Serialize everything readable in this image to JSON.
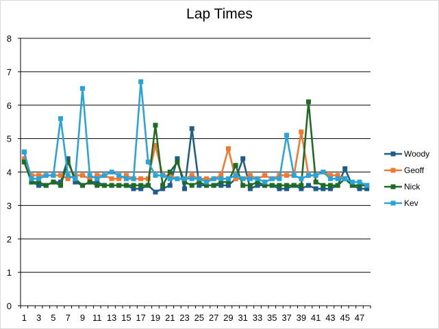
{
  "chart_data": {
    "type": "line",
    "title": "Lap Times",
    "xlabel": "",
    "ylabel": "",
    "x": [
      1,
      2,
      3,
      4,
      5,
      6,
      7,
      8,
      9,
      10,
      11,
      12,
      13,
      14,
      15,
      16,
      17,
      18,
      19,
      20,
      21,
      22,
      23,
      24,
      25,
      26,
      27,
      28,
      29,
      30,
      31,
      32,
      33,
      34,
      35,
      36,
      37,
      38,
      39,
      40,
      41,
      42,
      43,
      44,
      45,
      46,
      47,
      48
    ],
    "x_tick_labels": [
      "1",
      "3",
      "5",
      "7",
      "9",
      "11",
      "13",
      "15",
      "17",
      "19",
      "21",
      "23",
      "25",
      "27",
      "29",
      "31",
      "33",
      "35",
      "37",
      "39",
      "41",
      "43",
      "45",
      "47"
    ],
    "ylim": [
      0,
      8
    ],
    "y_ticks": [
      "0",
      "1",
      "2",
      "3",
      "4",
      "5",
      "6",
      "7",
      "8"
    ],
    "grid": true,
    "legend_position": "right",
    "series": [
      {
        "name": "Woody",
        "color": "#1f5c87",
        "values": [
          4.6,
          3.7,
          3.6,
          3.6,
          3.7,
          3.7,
          4.4,
          3.7,
          3.6,
          3.7,
          3.7,
          3.6,
          3.6,
          3.6,
          3.6,
          3.5,
          3.5,
          3.6,
          3.4,
          3.5,
          3.6,
          4.4,
          3.5,
          5.3,
          3.6,
          3.6,
          3.6,
          3.6,
          3.6,
          3.8,
          4.4,
          3.5,
          3.6,
          3.6,
          3.6,
          3.5,
          3.5,
          3.6,
          3.5,
          3.6,
          3.5,
          3.5,
          3.5,
          3.6,
          4.1,
          3.6,
          3.5,
          3.5
        ]
      },
      {
        "name": "Geoff",
        "color": "#f07830",
        "values": [
          4.4,
          3.9,
          3.9,
          3.9,
          3.9,
          3.9,
          3.8,
          3.9,
          3.9,
          3.8,
          3.9,
          3.9,
          3.8,
          3.8,
          3.9,
          3.8,
          3.8,
          3.8,
          4.8,
          3.9,
          3.9,
          3.8,
          3.8,
          3.9,
          3.8,
          3.8,
          3.8,
          3.9,
          4.7,
          3.8,
          3.8,
          3.9,
          3.8,
          3.9,
          3.8,
          3.9,
          3.9,
          3.9,
          5.2,
          3.9,
          3.9,
          4.0,
          3.9,
          3.9,
          3.8,
          3.6,
          3.6,
          3.6
        ]
      },
      {
        "name": "Nick",
        "color": "#1e6b24",
        "values": [
          4.3,
          3.7,
          3.7,
          3.6,
          3.7,
          3.6,
          4.3,
          3.8,
          3.6,
          3.7,
          3.6,
          3.6,
          3.6,
          3.6,
          3.6,
          3.6,
          3.6,
          3.6,
          5.4,
          3.6,
          4.0,
          4.3,
          3.7,
          3.6,
          3.7,
          3.6,
          3.6,
          3.7,
          3.7,
          4.2,
          3.6,
          3.6,
          3.7,
          3.6,
          3.6,
          3.6,
          3.6,
          3.6,
          3.6,
          6.1,
          3.7,
          3.6,
          3.6,
          3.6,
          3.8,
          3.6,
          3.6,
          3.6
        ]
      },
      {
        "name": "Kev",
        "color": "#2aa4d8",
        "values": [
          4.6,
          3.8,
          3.8,
          3.9,
          3.9,
          5.6,
          3.9,
          3.8,
          6.5,
          3.9,
          3.8,
          3.9,
          4.0,
          3.9,
          3.8,
          3.8,
          6.7,
          4.3,
          3.9,
          3.9,
          3.8,
          3.8,
          3.8,
          3.8,
          3.8,
          3.7,
          3.8,
          3.8,
          3.8,
          3.9,
          3.8,
          3.8,
          3.8,
          3.7,
          3.8,
          3.8,
          5.1,
          3.9,
          3.8,
          3.9,
          3.9,
          4.0,
          3.8,
          3.8,
          3.8,
          3.7,
          3.7,
          3.6
        ]
      }
    ]
  }
}
